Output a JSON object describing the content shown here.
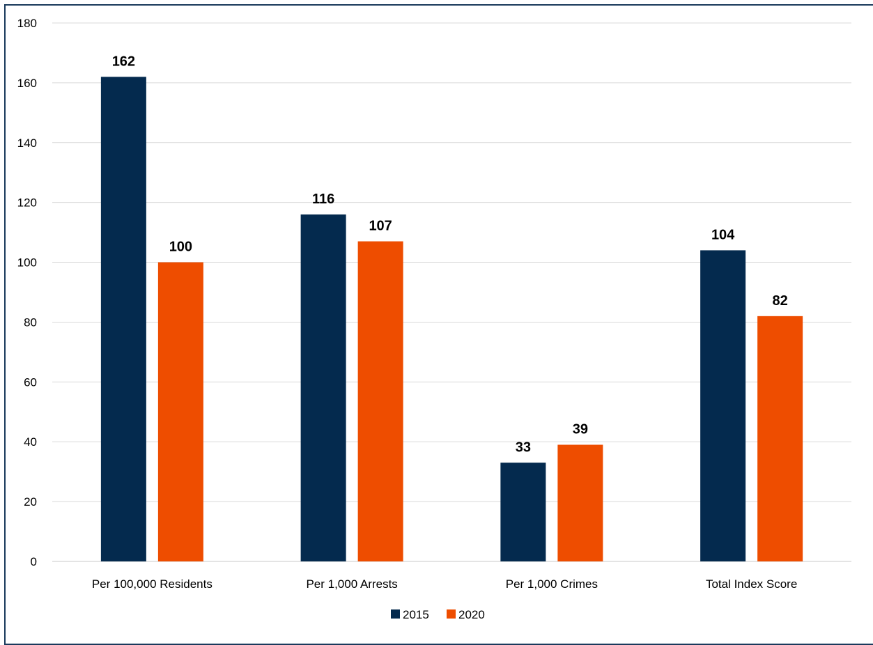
{
  "chart_data": {
    "type": "bar",
    "categories": [
      "Per 100,000 Residents",
      "Per 1,000 Arrests",
      "Per 1,000 Crimes",
      "Total Index Score"
    ],
    "series": [
      {
        "name": "2015",
        "values": [
          162,
          116,
          33,
          104
        ],
        "color": "#042a4e"
      },
      {
        "name": "2020",
        "values": [
          100,
          107,
          39,
          82
        ],
        "color": "#ee4d00"
      }
    ],
    "ylim": [
      0,
      180
    ],
    "yticks": [
      0,
      20,
      40,
      60,
      80,
      100,
      120,
      140,
      160,
      180
    ],
    "grid": true,
    "legend": "bottom"
  }
}
